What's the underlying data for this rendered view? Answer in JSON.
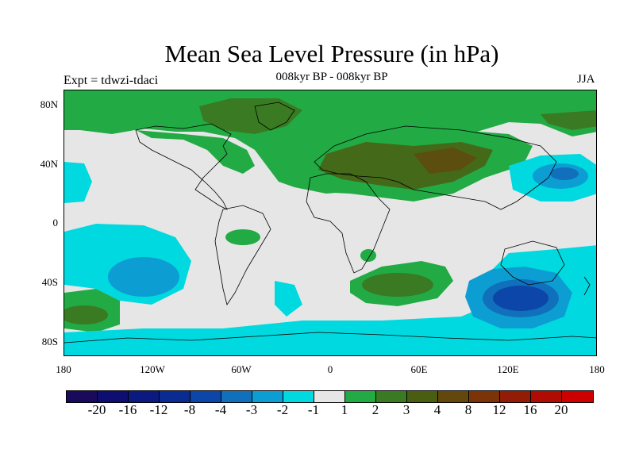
{
  "title": "Mean Sea Level Pressure (in hPa)",
  "subtitle": "008kyr BP - 008kyr BP",
  "expt_label": "Expt = tdwzi-tdaci",
  "season": "JJA",
  "map": {
    "lat_ticks": [
      "80N",
      "40N",
      "0",
      "40S",
      "80S"
    ],
    "lon_ticks": [
      "180",
      "120W",
      "60W",
      "0",
      "60E",
      "120E",
      "180"
    ]
  },
  "colorbar": {
    "colors": [
      "#1a0a5c",
      "#0e0e70",
      "#0a1a80",
      "#0a2c92",
      "#0c46a8",
      "#1070bc",
      "#0c9ed2",
      "#00d9df",
      "#e6e6e6",
      "#22aa44",
      "#3a7a22",
      "#4a5e12",
      "#63470c",
      "#7a3408",
      "#921c06",
      "#b00c04",
      "#cc0000"
    ],
    "labels": [
      "-20",
      "-16",
      "-12",
      "-8",
      "-4",
      "-3",
      "-2",
      "-1",
      "1",
      "2",
      "3",
      "4",
      "8",
      "12",
      "16",
      "20"
    ]
  },
  "legend_colors": {
    "background_zero": "#e6e6e6",
    "neg_1": "#00d9df",
    "neg_2": "#0c9ed2",
    "neg_3": "#1070bc",
    "neg_4": "#0c46a8",
    "pos_1": "#22aa44",
    "pos_2": "#3a7a22",
    "pos_3": "#4a5e12",
    "pos_4": "#63470c"
  }
}
